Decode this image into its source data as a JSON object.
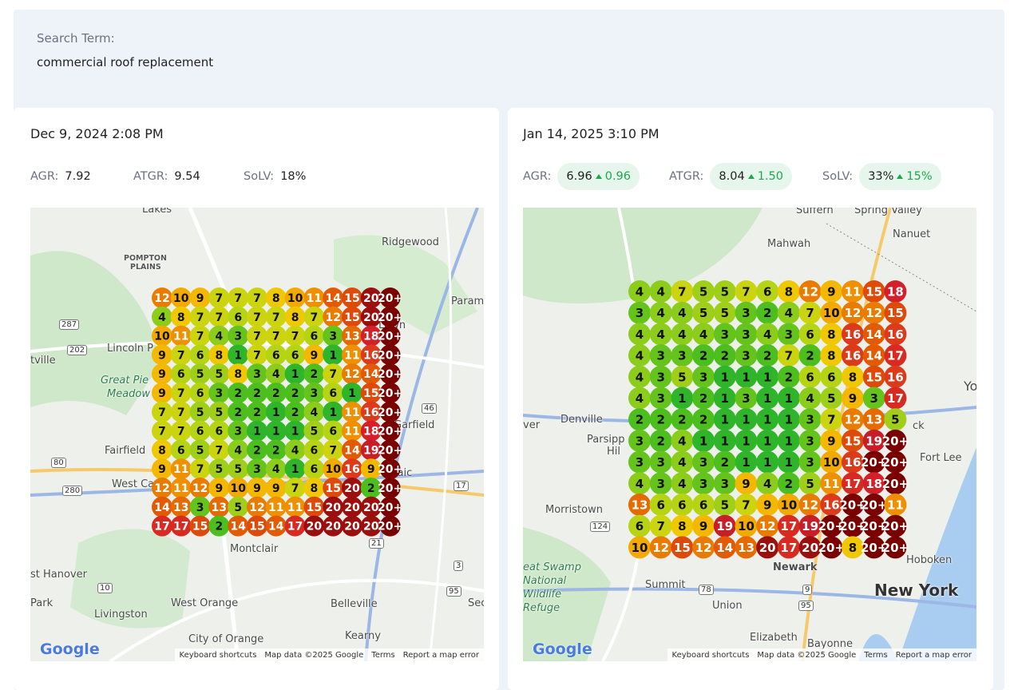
{
  "search": {
    "label": "Search Term:",
    "value": "commercial roof replacement"
  },
  "reports": [
    {
      "date": "Dec 9, 2024 2:08 PM",
      "metrics": [
        {
          "label": "AGR:",
          "value": "7.92"
        },
        {
          "label": "ATGR:",
          "value": "9.54"
        },
        {
          "label": "SoLV:",
          "value": "18%"
        }
      ],
      "grid": [
        [
          12,
          10,
          9,
          7,
          7,
          7,
          8,
          10,
          11,
          14,
          15,
          20,
          "20+"
        ],
        [
          4,
          8,
          7,
          7,
          6,
          7,
          7,
          8,
          7,
          12,
          15,
          20,
          "20+"
        ],
        [
          10,
          11,
          7,
          4,
          3,
          7,
          7,
          7,
          6,
          3,
          13,
          18,
          "20+"
        ],
        [
          9,
          7,
          6,
          8,
          1,
          7,
          6,
          6,
          9,
          1,
          11,
          16,
          "20+"
        ],
        [
          9,
          6,
          5,
          5,
          8,
          3,
          4,
          1,
          2,
          7,
          12,
          14,
          "20+"
        ],
        [
          9,
          7,
          6,
          3,
          2,
          2,
          2,
          2,
          3,
          6,
          1,
          15,
          "20+"
        ],
        [
          7,
          7,
          5,
          5,
          2,
          2,
          1,
          2,
          4,
          1,
          11,
          16,
          "20+"
        ],
        [
          7,
          7,
          6,
          6,
          3,
          1,
          1,
          1,
          5,
          6,
          11,
          18,
          "20+"
        ],
        [
          8,
          6,
          5,
          7,
          4,
          2,
          2,
          4,
          6,
          7,
          14,
          19,
          "20+"
        ],
        [
          9,
          11,
          7,
          5,
          5,
          3,
          4,
          1,
          6,
          10,
          16,
          9,
          "20+"
        ],
        [
          12,
          11,
          12,
          9,
          10,
          9,
          9,
          7,
          8,
          15,
          20,
          2,
          "20+"
        ],
        [
          14,
          13,
          3,
          13,
          5,
          12,
          11,
          11,
          15,
          20,
          20,
          20,
          "20+"
        ],
        [
          17,
          17,
          15,
          2,
          14,
          15,
          14,
          17,
          20,
          20,
          20,
          20,
          "20+"
        ]
      ],
      "map_labels": [
        "Lakes",
        "Ridgewood",
        "POMPTON",
        "PLAINS",
        "Lincoln P",
        "tville",
        "Great Pie",
        "Meadow",
        "Param",
        "Lawn",
        "Garfield",
        "Fairfield",
        "West Ca",
        "ssaic",
        "Montclair",
        "st Hanover",
        "Park",
        "Livingston",
        "West Orange",
        "Belleville",
        "City of Orange",
        "Kearny",
        "Sec",
        "287",
        "202",
        "80",
        "280",
        "17",
        "46",
        "21",
        "10",
        "95",
        "3"
      ],
      "map_footer": {
        "logo": "Google",
        "shortcuts": "Keyboard shortcuts",
        "data": "Map data ©2025 Google",
        "terms": "Terms",
        "report": "Report a map error"
      }
    },
    {
      "date": "Jan 14, 2025 3:10 PM",
      "metrics": [
        {
          "label": "AGR:",
          "value": "6.96",
          "change": "0.96"
        },
        {
          "label": "ATGR:",
          "value": "8.04",
          "change": "1.50"
        },
        {
          "label": "SoLV:",
          "value": "33%",
          "change": "15%"
        }
      ],
      "grid": [
        [
          4,
          4,
          7,
          5,
          5,
          7,
          6,
          8,
          12,
          9,
          11,
          15,
          18
        ],
        [
          3,
          4,
          4,
          5,
          5,
          3,
          2,
          4,
          7,
          10,
          12,
          12,
          15
        ],
        [
          4,
          4,
          4,
          4,
          3,
          3,
          4,
          3,
          6,
          8,
          16,
          14,
          16
        ],
        [
          4,
          3,
          3,
          2,
          2,
          3,
          2,
          7,
          2,
          8,
          16,
          14,
          17
        ],
        [
          4,
          3,
          5,
          3,
          1,
          1,
          1,
          2,
          6,
          6,
          8,
          15,
          16
        ],
        [
          4,
          3,
          1,
          2,
          1,
          3,
          1,
          1,
          4,
          5,
          9,
          3,
          17
        ],
        [
          2,
          2,
          2,
          2,
          1,
          1,
          1,
          1,
          3,
          7,
          12,
          13,
          5
        ],
        [
          3,
          2,
          4,
          1,
          1,
          1,
          1,
          1,
          3,
          9,
          15,
          19,
          "20+"
        ],
        [
          3,
          3,
          4,
          3,
          2,
          1,
          1,
          1,
          3,
          10,
          16,
          "20+",
          "20+"
        ],
        [
          4,
          3,
          4,
          3,
          3,
          9,
          4,
          2,
          5,
          11,
          17,
          18,
          "20+"
        ],
        [
          13,
          6,
          6,
          6,
          5,
          7,
          9,
          10,
          12,
          16,
          "20+",
          "20+",
          11
        ],
        [
          6,
          7,
          8,
          9,
          19,
          10,
          12,
          17,
          19,
          "20+",
          "20+",
          "20+",
          "20+"
        ],
        [
          10,
          12,
          15,
          12,
          14,
          13,
          20,
          17,
          20,
          "20+",
          8,
          "20+",
          "20+"
        ]
      ],
      "map_labels": [
        "Suffern",
        "Spring Valley",
        "Nanuet",
        "Mahwah",
        "Denville",
        "ver",
        "Parsipp",
        "Hil",
        "Fort Lee",
        "Morristown",
        "Newark",
        "Hoboken",
        "Summit",
        "Union",
        "New York",
        "eat Swamp",
        "National",
        "Wildlife",
        "Refuge",
        "Elizabeth",
        "Bayonne",
        "Yo",
        "ck",
        "78",
        "9",
        "95",
        "124"
      ],
      "map_footer": {
        "logo": "Google",
        "shortcuts": "Keyboard shortcuts",
        "data": "Map data ©2025 Google",
        "terms": "Terms",
        "report": "Report a map error"
      }
    }
  ]
}
